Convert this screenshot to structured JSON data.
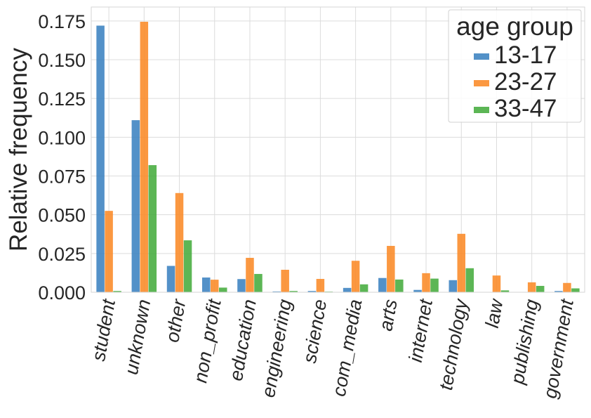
{
  "chart_data": {
    "type": "bar",
    "ylabel": "Relative frequency",
    "xlabel": "",
    "ylim": [
      0,
      0.184
    ],
    "yticks": [
      "0.000",
      "0.025",
      "0.050",
      "0.075",
      "0.100",
      "0.125",
      "0.150",
      "0.175"
    ],
    "grid": true,
    "legend_position": "top-right",
    "legend_title": "age group",
    "categories": [
      "student",
      "unknown",
      "other",
      "non_profit",
      "education",
      "engineering",
      "science",
      "com_media",
      "arts",
      "internet",
      "technology",
      "law",
      "publishing",
      "government"
    ],
    "series": [
      {
        "name": "13-17",
        "color": "#3b82c0",
        "values": [
          0.172,
          0.111,
          0.017,
          0.0095,
          0.0085,
          0.0005,
          0.0008,
          0.0028,
          0.0092,
          0.0015,
          0.0078,
          0.0,
          0.0,
          0.0008
        ]
      },
      {
        "name": "23-27",
        "color": "#fa8a27",
        "values": [
          0.0525,
          0.1745,
          0.064,
          0.0081,
          0.0222,
          0.0145,
          0.0086,
          0.0203,
          0.0299,
          0.0123,
          0.0377,
          0.0108,
          0.0064,
          0.006
        ]
      },
      {
        "name": "33-47",
        "color": "#45ac3d",
        "values": [
          0.0008,
          0.082,
          0.0335,
          0.003,
          0.0118,
          0.0008,
          0.0004,
          0.0051,
          0.0082,
          0.0088,
          0.0155,
          0.0012,
          0.0041,
          0.0025
        ]
      }
    ]
  }
}
